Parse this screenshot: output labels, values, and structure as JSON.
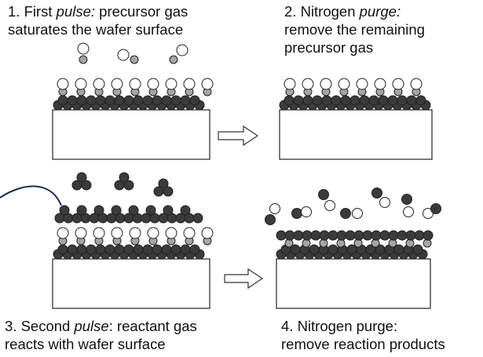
{
  "captions": {
    "step1": {
      "pre": "1. First ",
      "em": "pulse:",
      "post": " precursor gas\nsaturates the wafer surface"
    },
    "step2": {
      "pre": "2. Nitrogen ",
      "em": "purge:",
      "post": "\nremove the remaining\nprecursor gas"
    },
    "step3": {
      "pre": "3. Second ",
      "em": "pulse",
      "post": ": reactant gas\nreacts with wafer surface"
    },
    "step4": {
      "pre": "4. Nitrogen purge:\nremove reaction products",
      "em": "",
      "post": ""
    }
  },
  "colors": {
    "substrate_atom": "#3b3b3b",
    "precursor_ring": "#ffffff",
    "precursor_dot": "#a8a8a8",
    "outline": "#222222",
    "annotation_line": "#1a2a5a"
  },
  "icons": {
    "arrow": "hollow-right-arrow",
    "substrate": "wafer-block"
  }
}
